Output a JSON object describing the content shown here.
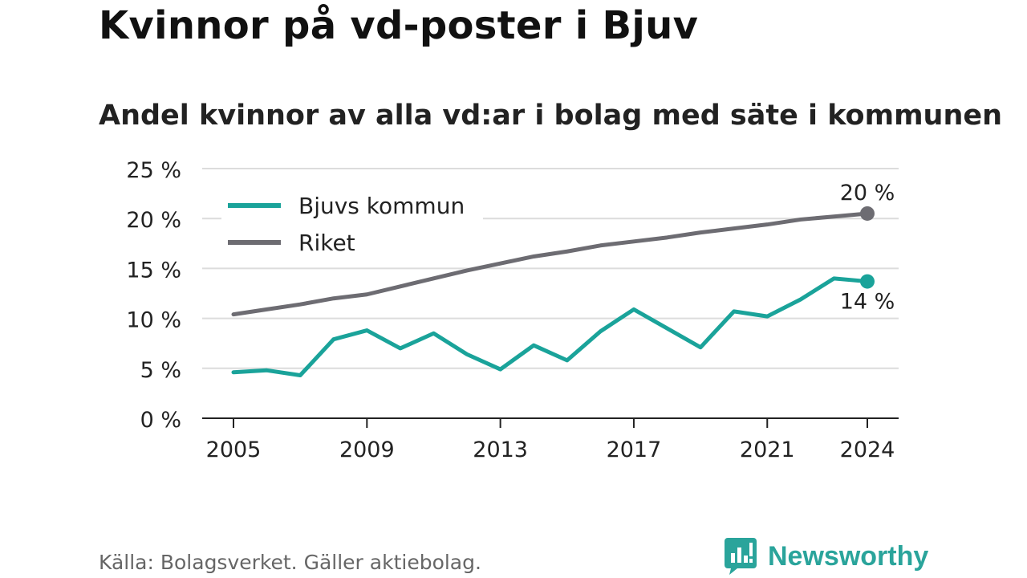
{
  "title": "Kvinnor på vd-poster i Bjuv",
  "subtitle": "Andel kvinnor av alla vd:ar i bolag med säte i kommunen",
  "source": "Källa: Bolagsverket. Gäller aktiebolag.",
  "brand": {
    "name": "Newsworthy",
    "icon": "newsworthy-logo-icon",
    "color": "#2aa49b"
  },
  "chart_data": {
    "type": "line",
    "title": "Kvinnor på vd-poster i Bjuv",
    "subtitle": "Andel kvinnor av alla vd:ar i bolag med säte i kommunen",
    "xlabel": "",
    "ylabel": "",
    "x": [
      2005,
      2006,
      2007,
      2008,
      2009,
      2010,
      2011,
      2012,
      2013,
      2014,
      2015,
      2016,
      2017,
      2018,
      2019,
      2020,
      2021,
      2022,
      2023,
      2024
    ],
    "x_ticks": [
      "2005",
      "2009",
      "2013",
      "2017",
      "2021",
      "2024"
    ],
    "ylim": [
      0,
      25
    ],
    "y_ticks": [
      {
        "value": 0,
        "label": "0 %"
      },
      {
        "value": 5,
        "label": "5 %"
      },
      {
        "value": 10,
        "label": "10 %"
      },
      {
        "value": 15,
        "label": "15 %"
      },
      {
        "value": 20,
        "label": "20 %"
      },
      {
        "value": 25,
        "label": "25 %"
      }
    ],
    "grid": true,
    "legend_position": "top-left",
    "series": [
      {
        "name": "Bjuvs kommun",
        "color": "#1aa39a",
        "values": [
          4.6,
          4.8,
          4.3,
          7.9,
          8.8,
          7.0,
          8.5,
          6.4,
          4.9,
          7.3,
          5.8,
          8.7,
          10.9,
          9.0,
          7.1,
          10.7,
          10.2,
          11.9,
          14.0,
          13.7
        ],
        "end_label": "14 %",
        "end_label_position": "below"
      },
      {
        "name": "Riket",
        "color": "#6d6c72",
        "values": [
          10.4,
          10.9,
          11.4,
          12.0,
          12.4,
          13.2,
          14.0,
          14.8,
          15.5,
          16.2,
          16.7,
          17.3,
          17.7,
          18.1,
          18.6,
          19.0,
          19.4,
          19.9,
          20.2,
          20.5
        ],
        "end_label": "20 %",
        "end_label_position": "above"
      }
    ]
  }
}
